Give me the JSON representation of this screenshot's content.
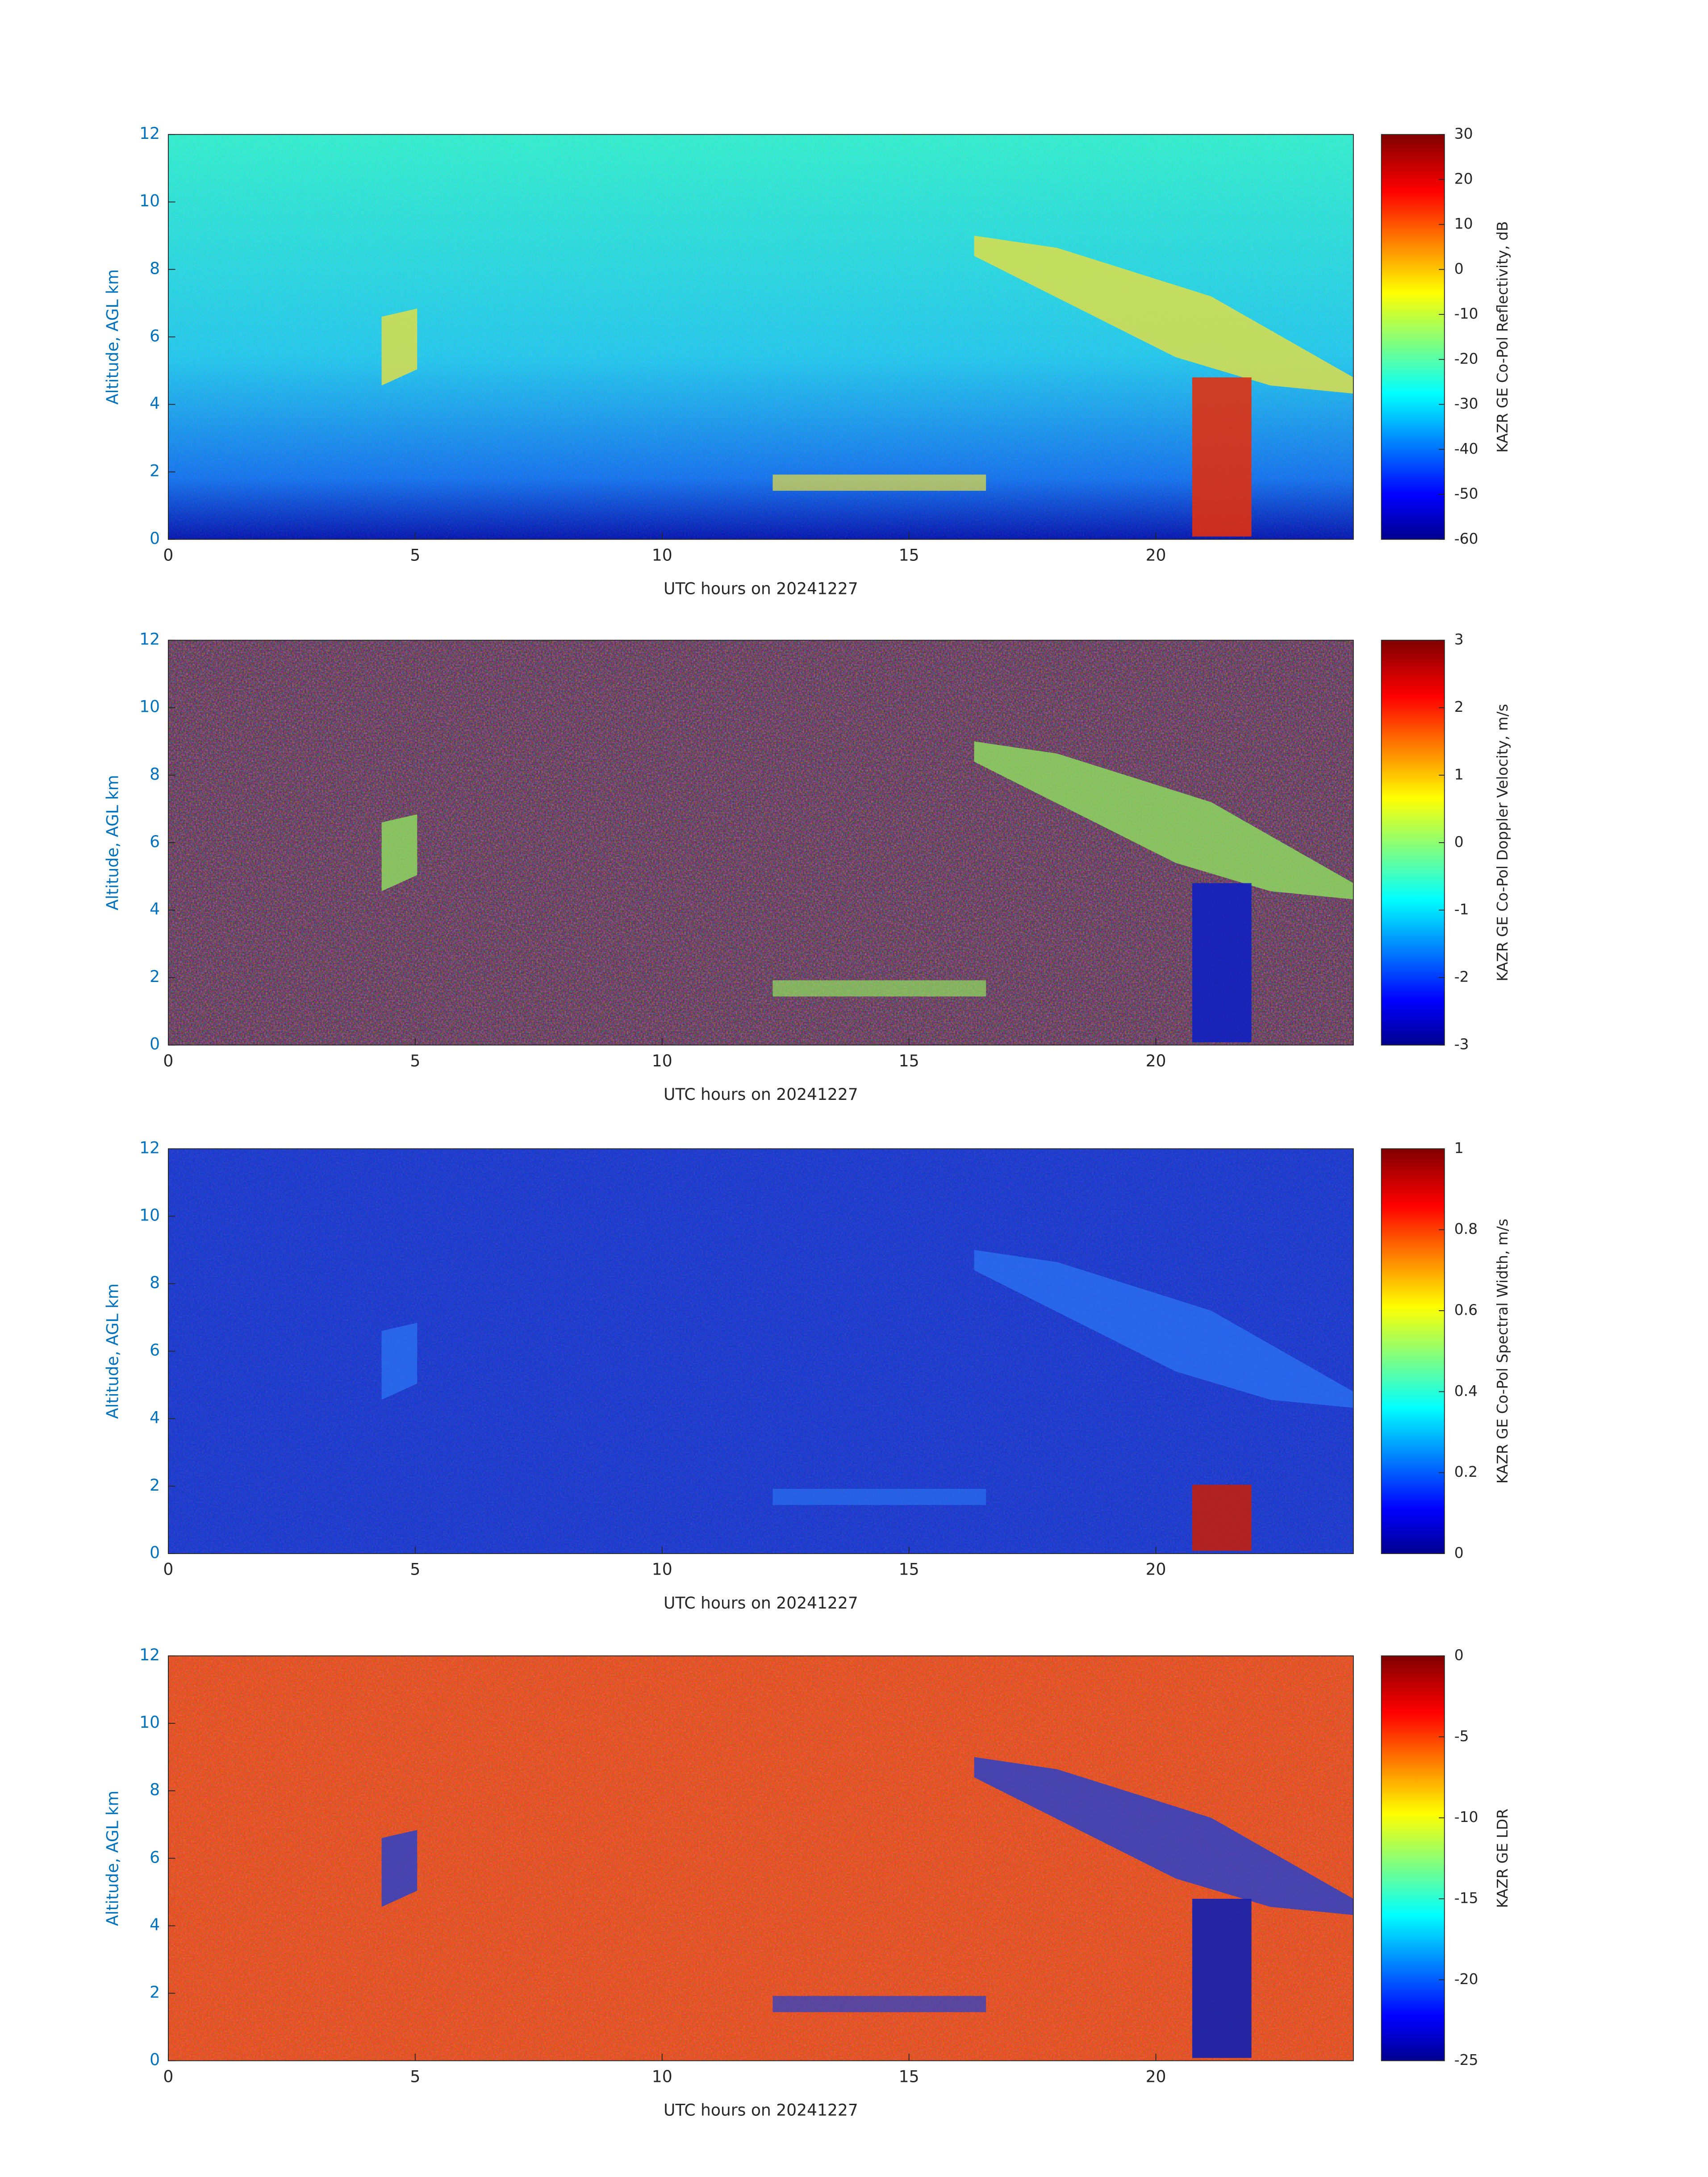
{
  "chart_data": [
    {
      "type": "heatmap",
      "xlabel": "UTC hours on 20241227",
      "ylabel": "Altitude, AGL km",
      "colorbar_label": "KAZR GE Co-Pol Reflectivity, dB",
      "colormap": "jet",
      "xlim": [
        0,
        24
      ],
      "xticks": [
        0,
        5,
        10,
        15,
        20
      ],
      "ylim": [
        0,
        12
      ],
      "yticks": [
        0,
        2,
        4,
        6,
        8,
        10,
        12
      ],
      "clim": [
        -60,
        30
      ],
      "cticks": [
        -60,
        -50,
        -40,
        -30,
        -20,
        -10,
        0,
        10,
        20,
        30
      ]
    },
    {
      "type": "heatmap",
      "xlabel": "UTC hours on 20241227",
      "ylabel": "Altitude, AGL km",
      "colorbar_label": "KAZR GE Co-Pol Doppler Velocity, m/s",
      "colormap": "jet",
      "xlim": [
        0,
        24
      ],
      "xticks": [
        0,
        5,
        10,
        15,
        20
      ],
      "ylim": [
        0,
        12
      ],
      "yticks": [
        0,
        2,
        4,
        6,
        8,
        10,
        12
      ],
      "clim": [
        -3,
        3
      ],
      "cticks": [
        -3,
        -2,
        -1,
        0,
        1,
        2,
        3
      ]
    },
    {
      "type": "heatmap",
      "xlabel": "UTC hours on 20241227",
      "ylabel": "Altitude, AGL km",
      "colorbar_label": "KAZR GE Co-Pol Spectral Width, m/s",
      "colormap": "jet",
      "xlim": [
        0,
        24
      ],
      "xticks": [
        0,
        5,
        10,
        15,
        20
      ],
      "ylim": [
        0,
        12
      ],
      "yticks": [
        0,
        2,
        4,
        6,
        8,
        10,
        12
      ],
      "clim": [
        0,
        1
      ],
      "cticks": [
        0,
        0.2,
        0.4,
        0.6,
        0.8,
        1
      ]
    },
    {
      "type": "heatmap",
      "xlabel": "UTC hours on 20241227",
      "ylabel": "Altitude, AGL km",
      "colorbar_label": "KAZR GE LDR",
      "colormap": "jet",
      "xlim": [
        0,
        24
      ],
      "xticks": [
        0,
        5,
        10,
        15,
        20
      ],
      "ylim": [
        0,
        12
      ],
      "yticks": [
        0,
        2,
        4,
        6,
        8,
        10,
        12
      ],
      "clim": [
        -25,
        0
      ],
      "cticks": [
        -25,
        -20,
        -15,
        -10,
        -5,
        0
      ]
    }
  ]
}
